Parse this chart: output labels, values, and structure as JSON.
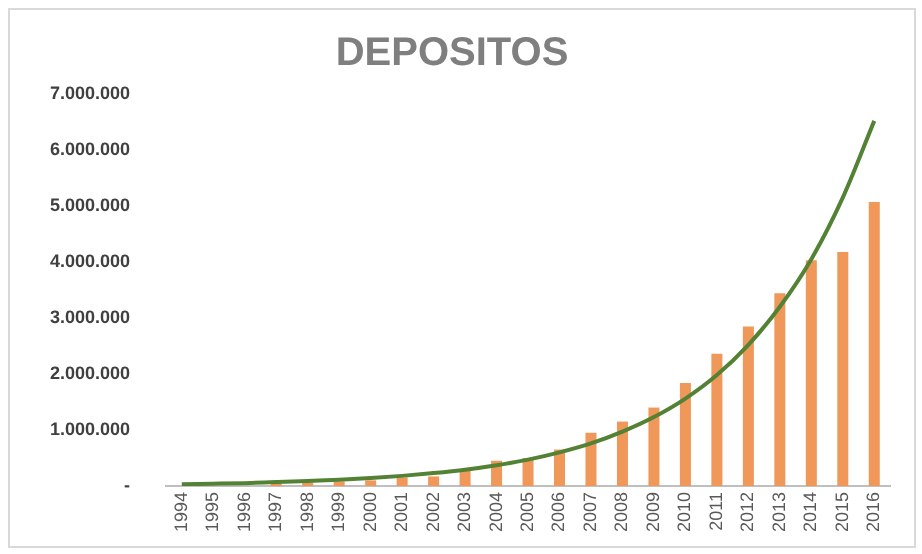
{
  "chart_data": {
    "type": "bar",
    "title": "DEPOSITOS",
    "categories": [
      "1994",
      "1995",
      "1996",
      "1997",
      "1998",
      "1999",
      "2000",
      "2001",
      "2002",
      "2003",
      "2004",
      "2005",
      "2006",
      "2007",
      "2008",
      "2009",
      "2010",
      "2011",
      "2012",
      "2013",
      "2014",
      "2015",
      "2016"
    ],
    "series": [
      {
        "color": "#f0975a",
        "values": [
          null,
          null,
          null,
          50000,
          60000,
          80000,
          100000,
          150000,
          170000,
          300000,
          450000,
          500000,
          650000,
          950000,
          1150000,
          1400000,
          1840000,
          2360000,
          2850000,
          3440000,
          4030000,
          4180000,
          5070000
        ]
      },
      {
        "type": "line",
        "color": "#548235",
        "marker": "none",
        "values": [
          30000,
          40000,
          50000,
          70000,
          90000,
          110000,
          140000,
          180000,
          230000,
          290000,
          370000,
          470000,
          600000,
          760000,
          970000,
          1230000,
          1560000,
          1980000,
          2520000,
          3200000,
          4050000,
          5150000,
          6520000
        ]
      }
    ],
    "ylim": [
      0,
      7000000
    ],
    "yticks": [
      {
        "value": 0,
        "label": "-"
      },
      {
        "value": 1000000,
        "label": "1.000.000"
      },
      {
        "value": 2000000,
        "label": "2.000.000"
      },
      {
        "value": 3000000,
        "label": "3.000.000"
      },
      {
        "value": 4000000,
        "label": "4.000.000"
      },
      {
        "value": 5000000,
        "label": "5.000.000"
      },
      {
        "value": 6000000,
        "label": "6.000.000"
      },
      {
        "value": 7000000,
        "label": "7.000.000"
      }
    ],
    "grid": false,
    "legend": false
  }
}
